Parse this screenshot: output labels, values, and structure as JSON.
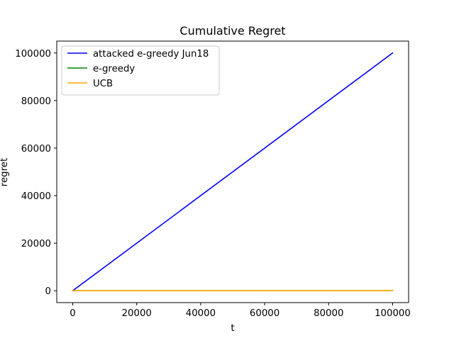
{
  "chart_data": {
    "type": "line",
    "title": "Cumulative Regret",
    "xlabel": "t",
    "ylabel": "regret",
    "xlim": [
      -5000,
      105000
    ],
    "ylim": [
      -5000,
      105000
    ],
    "xticks": [
      0,
      20000,
      40000,
      60000,
      80000,
      100000
    ],
    "yticks": [
      0,
      20000,
      40000,
      60000,
      80000,
      100000
    ],
    "xtick_labels": [
      "0",
      "20000",
      "40000",
      "60000",
      "80000",
      "100000"
    ],
    "ytick_labels": [
      "0",
      "20000",
      "40000",
      "60000",
      "80000",
      "100000"
    ],
    "grid": false,
    "legend_position": "top-left",
    "series": [
      {
        "name": "attacked e-greedy Jun18",
        "color": "#0000ff",
        "x": [
          0,
          100000
        ],
        "y": [
          0,
          100000
        ]
      },
      {
        "name": "e-greedy",
        "color": "#008000",
        "x": [
          0,
          100000
        ],
        "y": [
          0,
          0
        ]
      },
      {
        "name": "UCB",
        "color": "#ffa500",
        "x": [
          0,
          100000
        ],
        "y": [
          0,
          0
        ]
      }
    ]
  }
}
